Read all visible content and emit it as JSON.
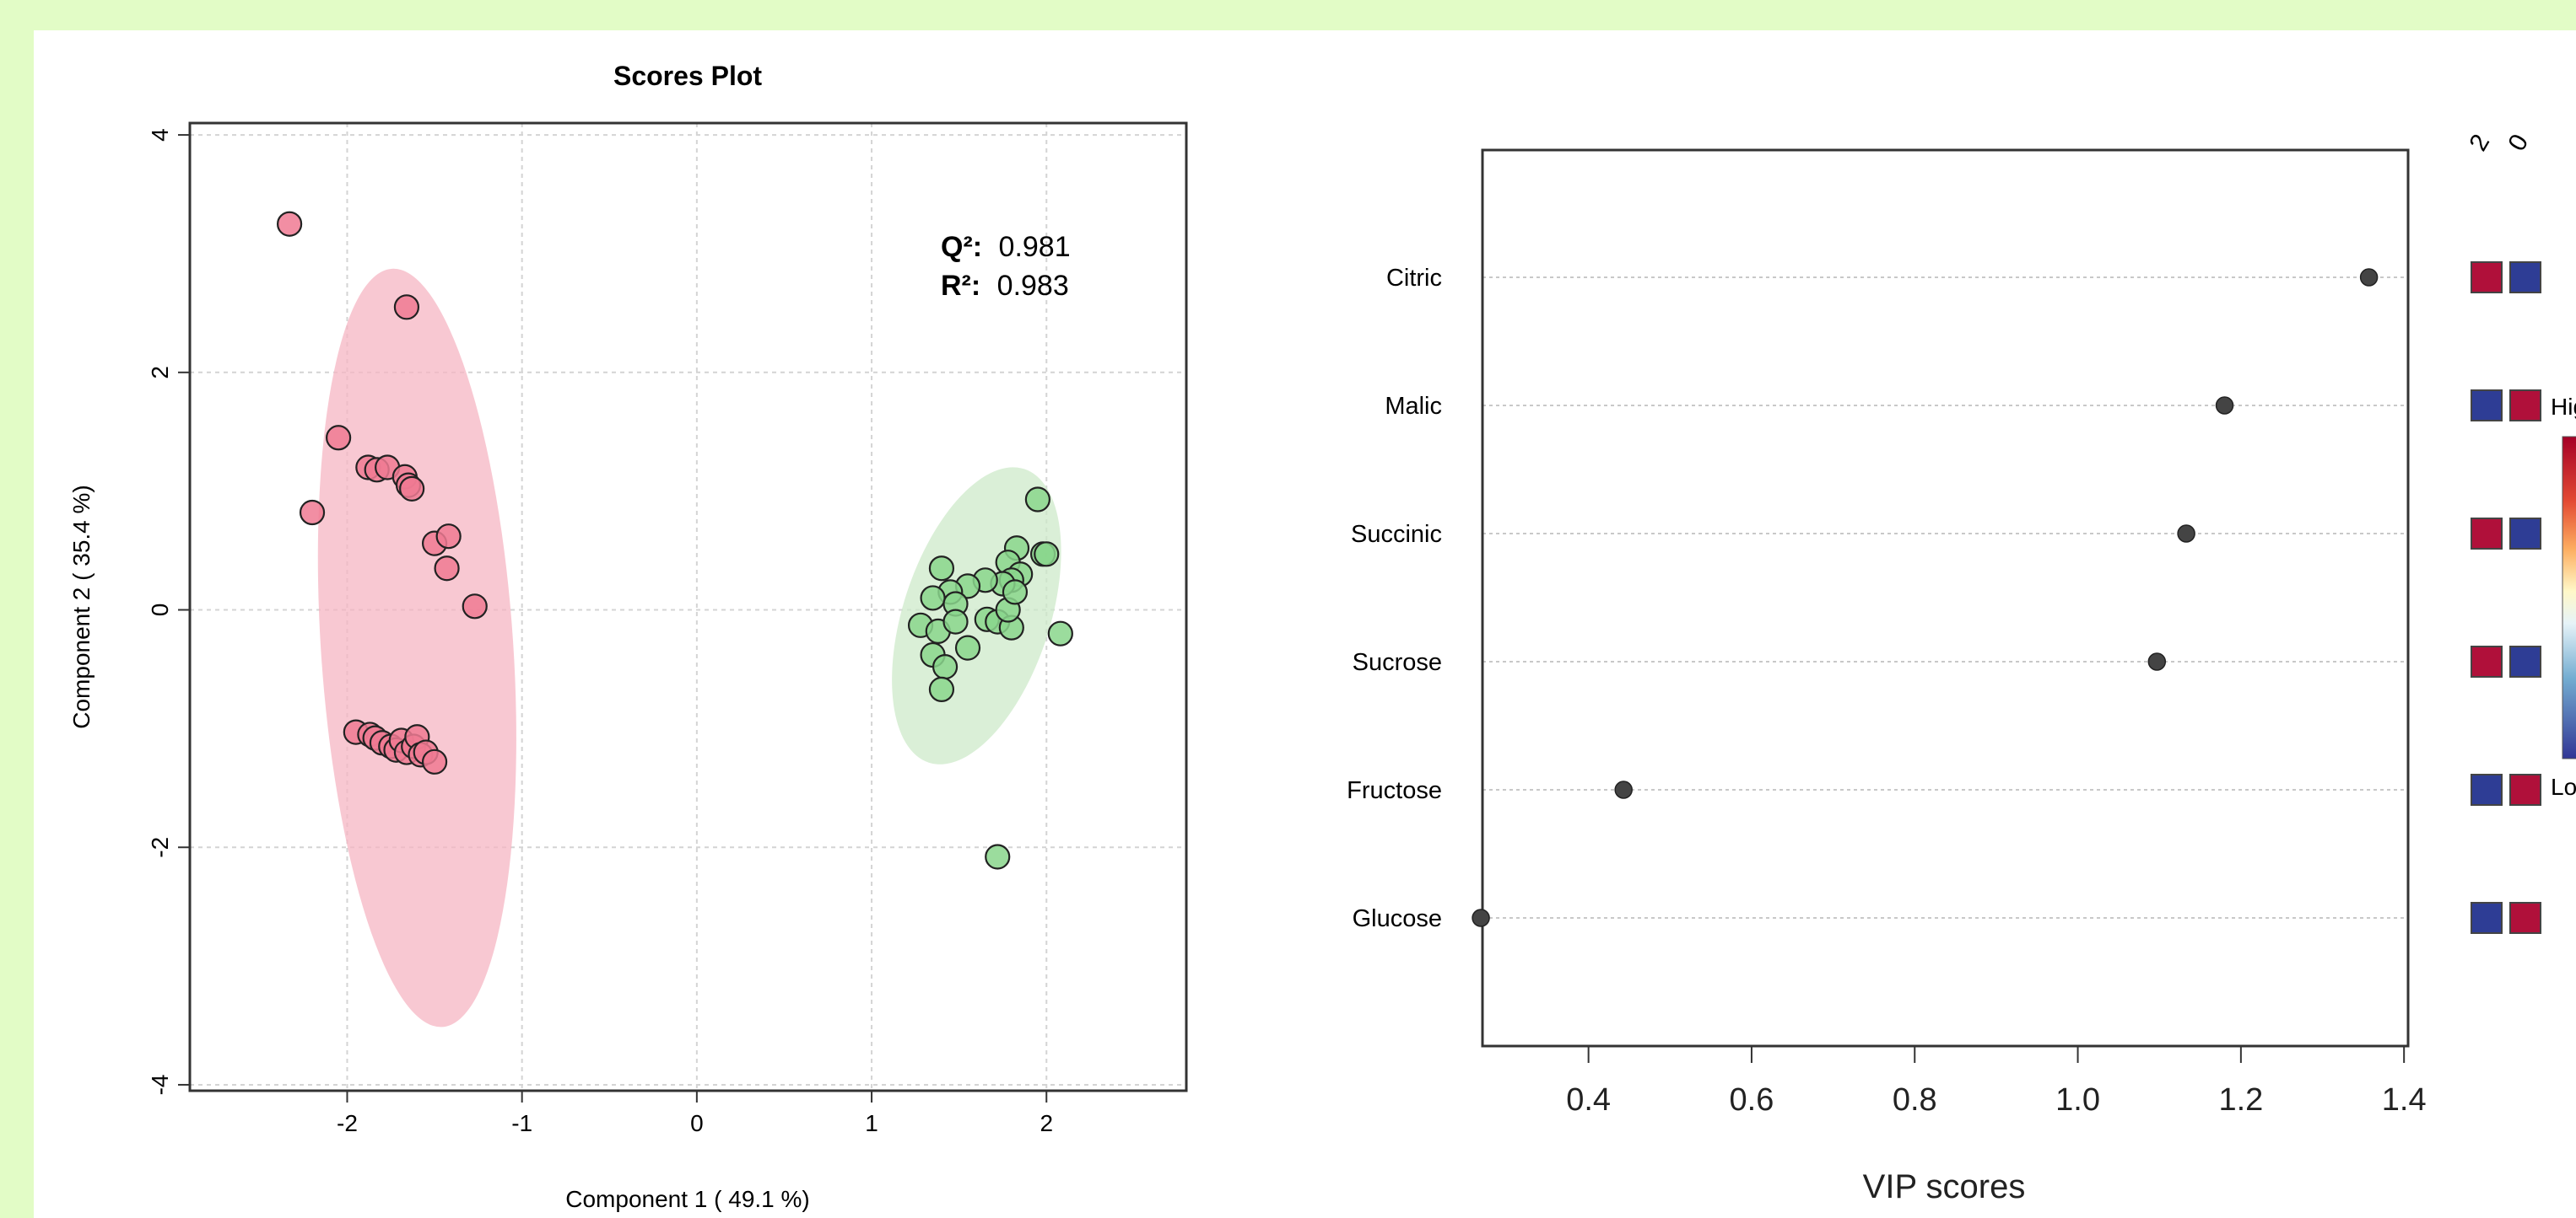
{
  "chart_data": [
    {
      "type": "scatter",
      "title": "Scores Plot",
      "xlabel": "Component 1 ( 49.1 %)",
      "ylabel": "Component 2 ( 35.4 %)",
      "xlim": [
        -2.9,
        2.8
      ],
      "ylim": [
        -4.05,
        4.1
      ],
      "x_ticks": [
        -2,
        -1,
        0,
        1,
        2
      ],
      "y_ticks": [
        -4,
        -2,
        0,
        2,
        4
      ],
      "grid": true,
      "stats": [
        {
          "label": "Q²:",
          "value": "0.981"
        },
        {
          "label": "R²:",
          "value": "0.983"
        }
      ],
      "series": [
        {
          "color": "#f07a93",
          "ellipse": {
            "cx": -1.6,
            "cy": -0.32,
            "rx": 0.55,
            "ry": 3.2,
            "tilt": -3.8,
            "fill": "#f5b5c3"
          },
          "points": [
            [
              -2.33,
              3.25
            ],
            [
              -1.66,
              2.55
            ],
            [
              -2.05,
              1.45
            ],
            [
              -2.2,
              0.82
            ],
            [
              -1.88,
              1.2
            ],
            [
              -1.83,
              1.18
            ],
            [
              -1.77,
              1.2
            ],
            [
              -1.67,
              1.12
            ],
            [
              -1.65,
              1.05
            ],
            [
              -1.63,
              1.02
            ],
            [
              -1.5,
              0.56
            ],
            [
              -1.42,
              0.62
            ],
            [
              -1.43,
              0.35
            ],
            [
              -1.27,
              0.03
            ],
            [
              -1.95,
              -1.03
            ],
            [
              -1.87,
              -1.05
            ],
            [
              -1.84,
              -1.08
            ],
            [
              -1.8,
              -1.12
            ],
            [
              -1.75,
              -1.15
            ],
            [
              -1.72,
              -1.18
            ],
            [
              -1.69,
              -1.1
            ],
            [
              -1.66,
              -1.2
            ],
            [
              -1.62,
              -1.15
            ],
            [
              -1.6,
              -1.07
            ],
            [
              -1.58,
              -1.22
            ],
            [
              -1.55,
              -1.2
            ],
            [
              -1.5,
              -1.28
            ]
          ]
        },
        {
          "color": "#8ad68c",
          "ellipse": {
            "cx": 1.6,
            "cy": -0.05,
            "rx": 0.42,
            "ry": 1.3,
            "tilt": 18,
            "fill": "#cde9c9"
          },
          "points": [
            [
              1.72,
              -2.08
            ],
            [
              1.95,
              0.93
            ],
            [
              2.08,
              -0.2
            ],
            [
              1.83,
              0.52
            ],
            [
              1.78,
              0.4
            ],
            [
              1.85,
              0.3
            ],
            [
              1.8,
              0.25
            ],
            [
              1.75,
              0.22
            ],
            [
              1.65,
              0.25
            ],
            [
              1.55,
              0.2
            ],
            [
              1.45,
              0.15
            ],
            [
              1.4,
              0.35
            ],
            [
              1.35,
              0.1
            ],
            [
              1.48,
              0.05
            ],
            [
              1.28,
              -0.13
            ],
            [
              1.38,
              -0.18
            ],
            [
              1.48,
              -0.1
            ],
            [
              1.35,
              -0.38
            ],
            [
              1.42,
              -0.48
            ],
            [
              1.4,
              -0.67
            ],
            [
              1.55,
              -0.32
            ],
            [
              1.66,
              -0.08
            ],
            [
              1.72,
              -0.1
            ],
            [
              1.8,
              -0.15
            ],
            [
              1.78,
              0.0
            ],
            [
              1.82,
              0.15
            ],
            [
              1.98,
              0.47
            ],
            [
              2.0,
              0.47
            ]
          ]
        }
      ]
    },
    {
      "type": "scatter",
      "xlabel": "VIP scores",
      "xlim": [
        0.27,
        1.405
      ],
      "x_ticks": [
        "0.4",
        "0.6",
        "0.8",
        "1.0",
        "1.2",
        "1.4"
      ],
      "categories": [
        "Citric",
        "Malic",
        "Succinic",
        "Sucrose",
        "Fructose",
        "Glucose"
      ],
      "values": [
        1.357,
        1.18,
        1.133,
        1.097,
        0.443,
        0.268
      ],
      "groups": [
        "2",
        "0"
      ],
      "heat_colors": [
        [
          "#b0103a",
          "#2e3d95"
        ],
        [
          "#2e3d95",
          "#b0103a"
        ],
        [
          "#b0103a",
          "#2e3d95"
        ],
        [
          "#b0103a",
          "#2e3d95"
        ],
        [
          "#2e3d95",
          "#b0103a"
        ],
        [
          "#2e3d95",
          "#b0103a"
        ]
      ],
      "colorbar": {
        "high_label": "High",
        "low_label": "Low"
      },
      "grid": true
    }
  ]
}
